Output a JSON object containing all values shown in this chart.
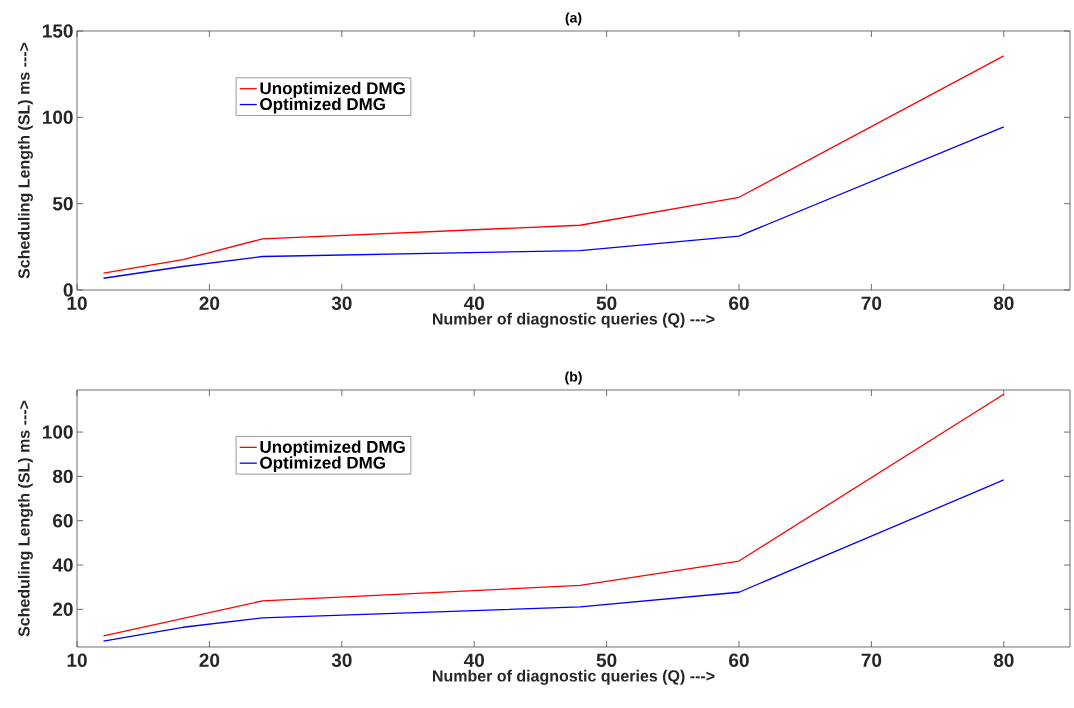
{
  "chart_data": [
    {
      "type": "line",
      "title": "(a)",
      "xlabel": "Number of diagnostic queries (Q) --->",
      "ylabel": "Scheduling Length (SL) ms --->",
      "x": [
        12,
        18,
        24,
        48,
        60,
        80
      ],
      "series": [
        {
          "name": "Unoptimized DMG",
          "color": "#ff0000",
          "values": [
            9.8,
            17.6,
            29.6,
            37.5,
            53.7,
            135.6
          ]
        },
        {
          "name": "Optimized DMG",
          "color": "#0000ff",
          "values": [
            6.8,
            13.6,
            19.4,
            22.8,
            31.2,
            94.5
          ]
        }
      ],
      "xlim": [
        10,
        85
      ],
      "ylim": [
        0,
        150
      ],
      "xticks": [
        10,
        20,
        30,
        40,
        50,
        60,
        70,
        80
      ],
      "yticks": [
        0,
        50,
        100,
        150
      ],
      "legend": "top left",
      "grid": false,
      "marker": "none",
      "line_style": "solid"
    },
    {
      "type": "line",
      "title": "(b)",
      "xlabel": "Number of diagnostic queries (Q) --->",
      "ylabel": "Scheduling Length (SL) ms --->",
      "x": [
        12,
        18,
        24,
        48,
        60,
        80
      ],
      "series": [
        {
          "name": "Unoptimized DMG",
          "color": "#ff0000",
          "values": [
            8.0,
            15.9,
            23.8,
            30.8,
            41.8,
            117.1
          ]
        },
        {
          "name": "Optimized DMG",
          "color": "#0000ff",
          "values": [
            5.6,
            11.9,
            16.1,
            21.1,
            27.7,
            78.4
          ]
        }
      ],
      "xlim": [
        10,
        85
      ],
      "ylim": [
        3,
        119
      ],
      "xticks": [
        10,
        20,
        30,
        40,
        50,
        60,
        70,
        80
      ],
      "yticks": [
        20,
        40,
        60,
        80,
        100
      ],
      "legend": "top left",
      "grid": false,
      "marker": "none",
      "line_style": "solid"
    }
  ]
}
